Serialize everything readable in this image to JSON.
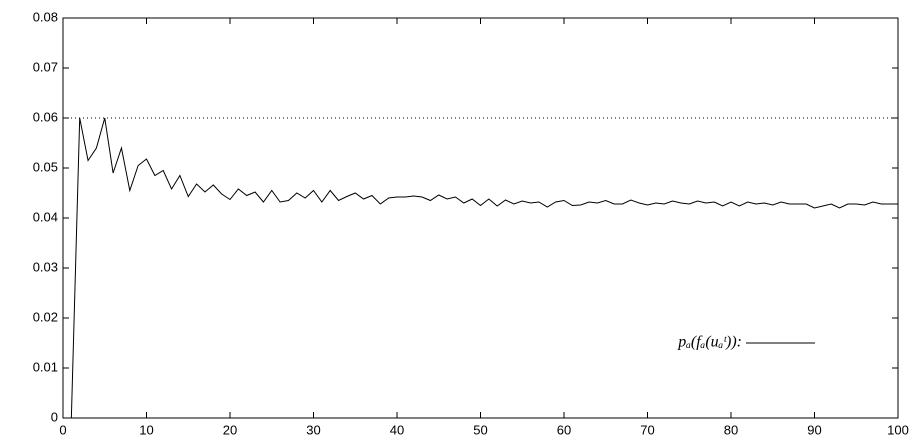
{
  "chart_data": {
    "type": "line",
    "x": [
      1,
      2,
      3,
      4,
      5,
      6,
      7,
      8,
      9,
      10,
      11,
      12,
      13,
      14,
      15,
      16,
      17,
      18,
      19,
      20,
      21,
      22,
      23,
      24,
      25,
      26,
      27,
      28,
      29,
      30,
      31,
      32,
      33,
      34,
      35,
      36,
      37,
      38,
      39,
      40,
      41,
      42,
      43,
      44,
      45,
      46,
      47,
      48,
      49,
      50,
      51,
      52,
      53,
      54,
      55,
      56,
      57,
      58,
      59,
      60,
      61,
      62,
      63,
      64,
      65,
      66,
      67,
      68,
      69,
      70,
      71,
      72,
      73,
      74,
      75,
      76,
      77,
      78,
      79,
      80,
      81,
      82,
      83,
      84,
      85,
      86,
      87,
      88,
      89,
      90,
      91,
      92,
      93,
      94,
      95,
      96,
      97,
      98,
      99,
      100
    ],
    "series": [
      {
        "name": "pₐ(fₐ(uₐᵗ)):",
        "color": "#000000",
        "values": [
          0,
          0.06,
          0.0515,
          0.054,
          0.06,
          0.049,
          0.054,
          0.0455,
          0.0505,
          0.0518,
          0.0485,
          0.0495,
          0.0458,
          0.0485,
          0.0443,
          0.0468,
          0.0452,
          0.0466,
          0.0448,
          0.0437,
          0.0458,
          0.0445,
          0.0452,
          0.0432,
          0.0455,
          0.0432,
          0.0435,
          0.045,
          0.044,
          0.0455,
          0.0432,
          0.0455,
          0.0435,
          0.0443,
          0.045,
          0.0438,
          0.0445,
          0.0428,
          0.044,
          0.0442,
          0.0442,
          0.0444,
          0.0442,
          0.0435,
          0.0446,
          0.0438,
          0.0442,
          0.043,
          0.0438,
          0.0425,
          0.0438,
          0.0424,
          0.0436,
          0.0428,
          0.0434,
          0.043,
          0.0432,
          0.0422,
          0.0432,
          0.0435,
          0.0425,
          0.0426,
          0.0432,
          0.043,
          0.0435,
          0.0428,
          0.0428,
          0.0436,
          0.043,
          0.0426,
          0.043,
          0.0428,
          0.0434,
          0.043,
          0.0428,
          0.0434,
          0.043,
          0.0432,
          0.0424,
          0.0432,
          0.0424,
          0.0432,
          0.0428,
          0.043,
          0.0426,
          0.0432,
          0.0428,
          0.0428,
          0.0428,
          0.042,
          0.0424,
          0.0428,
          0.042,
          0.0428,
          0.0428,
          0.0426,
          0.0432,
          0.0428,
          0.0428,
          0.0428
        ]
      }
    ],
    "reference_line": 0.06,
    "xlim": [
      0,
      100
    ],
    "xticks": [
      0,
      10,
      20,
      30,
      40,
      50,
      60,
      70,
      80,
      90,
      100
    ],
    "ylim": [
      0,
      0.08
    ],
    "yticks": [
      0,
      0.01,
      0.02,
      0.03,
      0.04,
      0.05,
      0.06,
      0.07,
      0.08
    ],
    "legend": "lower-right"
  }
}
